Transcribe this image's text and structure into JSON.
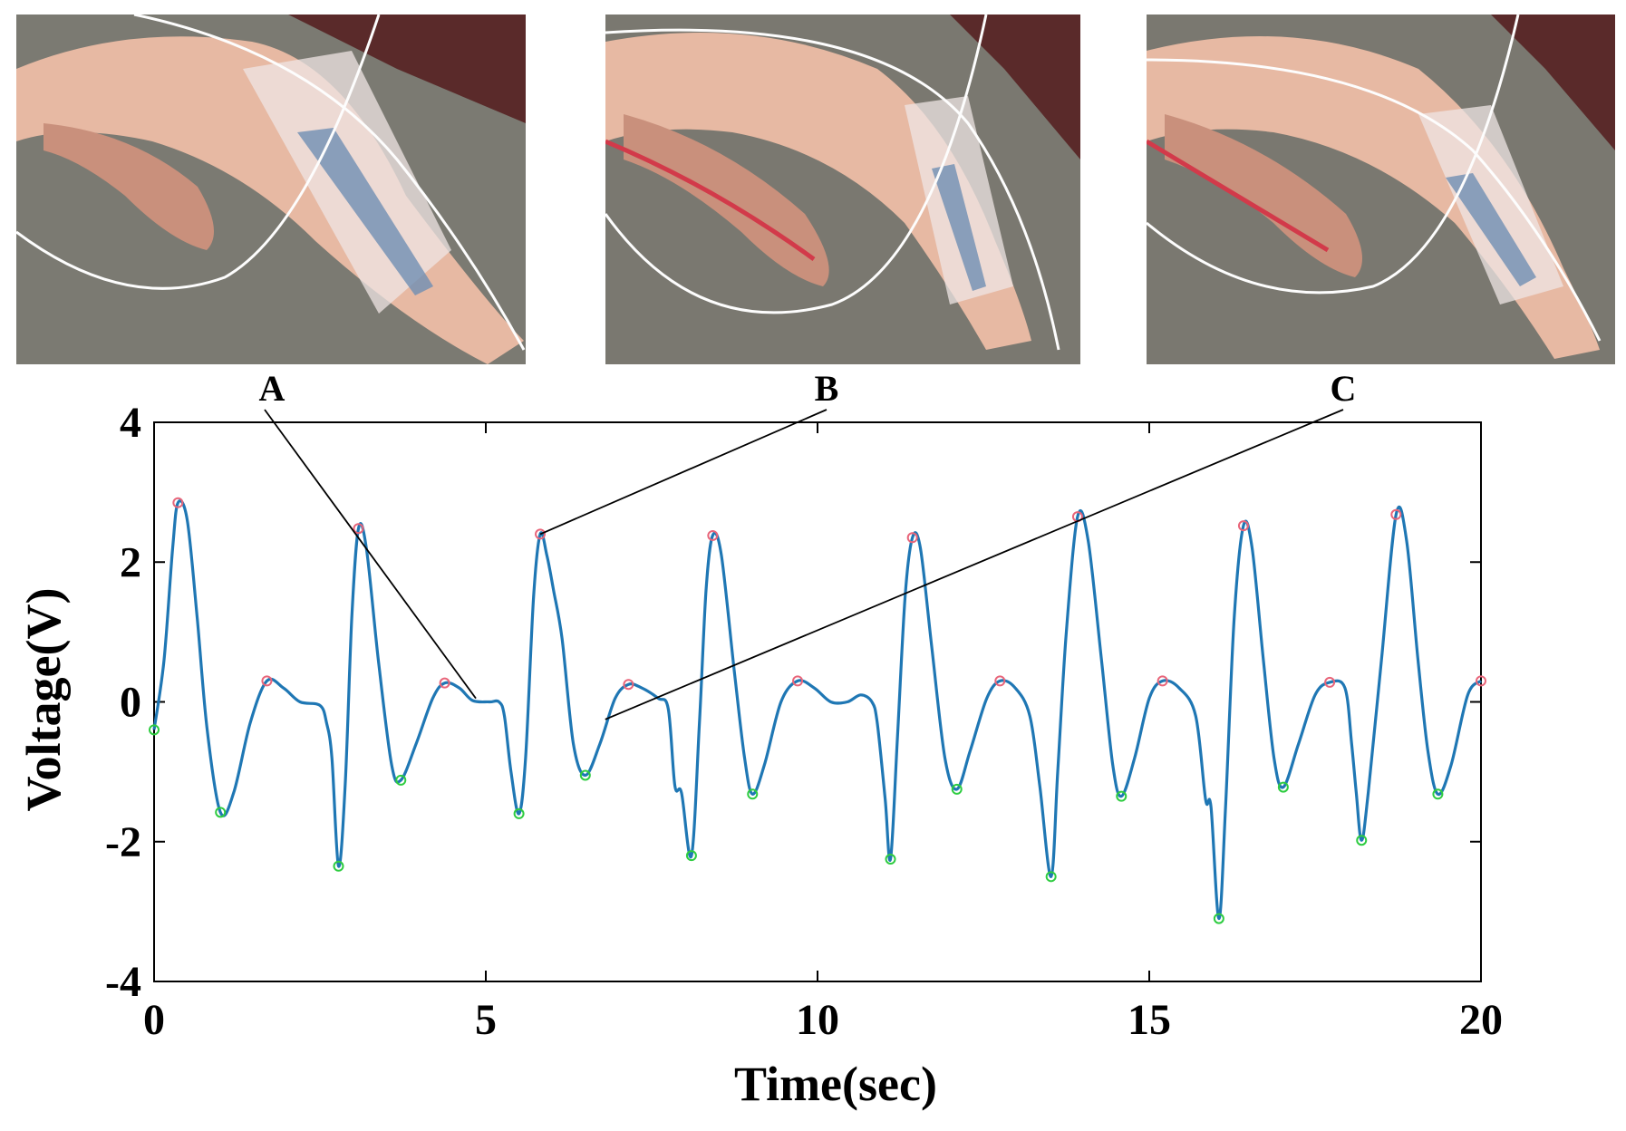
{
  "figure": {
    "photos": [
      {
        "id": "A",
        "description_icon": "finger-straight-photo"
      },
      {
        "id": "B",
        "description_icon": "finger-bent-photo"
      },
      {
        "id": "C",
        "description_icon": "finger-half-bent-photo"
      }
    ]
  },
  "chart_data": {
    "type": "line",
    "xlabel": "Time(sec)",
    "ylabel": "Voltage(V)",
    "xlim": [
      0,
      20
    ],
    "ylim": [
      -4,
      4
    ],
    "xticks": [
      0,
      5,
      10,
      15,
      20
    ],
    "yticks": [
      -4,
      -2,
      0,
      2,
      4
    ],
    "ytick_labels": [
      "-4",
      "-2",
      "0",
      "2",
      "4"
    ],
    "grid": false,
    "line_color": "#1f77b4",
    "peak_marker_color": "#e8657a",
    "trough_marker_color": "#2ecc40",
    "series": [
      {
        "points": [
          [
            0.0,
            -0.4
          ],
          [
            0.15,
            0.6
          ],
          [
            0.28,
            2.2
          ],
          [
            0.36,
            2.85
          ],
          [
            0.5,
            2.6
          ],
          [
            0.65,
            1.2
          ],
          [
            0.8,
            -0.4
          ],
          [
            1.0,
            -1.58
          ],
          [
            1.2,
            -1.3
          ],
          [
            1.45,
            -0.3
          ],
          [
            1.7,
            0.3
          ],
          [
            1.95,
            0.2
          ],
          [
            2.2,
            0.0
          ],
          [
            2.5,
            -0.05
          ],
          [
            2.6,
            -0.3
          ],
          [
            2.68,
            -0.8
          ],
          [
            2.78,
            -2.35
          ],
          [
            2.88,
            -1.2
          ],
          [
            2.98,
            1.2
          ],
          [
            3.08,
            2.48
          ],
          [
            3.2,
            2.2
          ],
          [
            3.38,
            0.6
          ],
          [
            3.58,
            -0.9
          ],
          [
            3.72,
            -1.12
          ],
          [
            3.95,
            -0.6
          ],
          [
            4.2,
            0.05
          ],
          [
            4.38,
            0.27
          ],
          [
            4.6,
            0.2
          ],
          [
            4.8,
            0.02
          ],
          [
            5.05,
            0.0
          ],
          [
            5.2,
            0.0
          ],
          [
            5.28,
            -0.2
          ],
          [
            5.38,
            -1.0
          ],
          [
            5.5,
            -1.6
          ],
          [
            5.6,
            -0.8
          ],
          [
            5.72,
            1.5
          ],
          [
            5.82,
            2.4
          ],
          [
            5.92,
            2.1
          ],
          [
            6.02,
            1.6
          ],
          [
            6.15,
            0.9
          ],
          [
            6.32,
            -0.6
          ],
          [
            6.5,
            -1.05
          ],
          [
            6.72,
            -0.6
          ],
          [
            6.95,
            0.05
          ],
          [
            7.15,
            0.25
          ],
          [
            7.35,
            0.2
          ],
          [
            7.6,
            0.05
          ],
          [
            7.75,
            -0.1
          ],
          [
            7.85,
            -1.2
          ],
          [
            7.95,
            -1.3
          ],
          [
            8.1,
            -2.2
          ],
          [
            8.22,
            -0.3
          ],
          [
            8.32,
            1.6
          ],
          [
            8.42,
            2.38
          ],
          [
            8.55,
            2.1
          ],
          [
            8.75,
            0.4
          ],
          [
            8.9,
            -0.8
          ],
          [
            9.02,
            -1.32
          ],
          [
            9.2,
            -0.9
          ],
          [
            9.45,
            0.0
          ],
          [
            9.7,
            0.3
          ],
          [
            9.95,
            0.2
          ],
          [
            10.2,
            0.0
          ],
          [
            10.45,
            0.0
          ],
          [
            10.65,
            0.1
          ],
          [
            10.82,
            0.0
          ],
          [
            10.9,
            -0.3
          ],
          [
            11.02,
            -1.4
          ],
          [
            11.1,
            -2.25
          ],
          [
            11.2,
            -0.6
          ],
          [
            11.32,
            1.5
          ],
          [
            11.43,
            2.35
          ],
          [
            11.55,
            2.2
          ],
          [
            11.72,
            0.8
          ],
          [
            11.92,
            -0.8
          ],
          [
            12.1,
            -1.25
          ],
          [
            12.3,
            -0.7
          ],
          [
            12.55,
            0.05
          ],
          [
            12.75,
            0.3
          ],
          [
            12.98,
            0.2
          ],
          [
            13.2,
            -0.2
          ],
          [
            13.35,
            -1.2
          ],
          [
            13.52,
            -2.5
          ],
          [
            13.62,
            -1.0
          ],
          [
            13.75,
            1.0
          ],
          [
            13.92,
            2.65
          ],
          [
            14.08,
            2.3
          ],
          [
            14.28,
            0.6
          ],
          [
            14.45,
            -0.9
          ],
          [
            14.58,
            -1.35
          ],
          [
            14.78,
            -0.8
          ],
          [
            15.0,
            0.05
          ],
          [
            15.2,
            0.3
          ],
          [
            15.45,
            0.2
          ],
          [
            15.7,
            -0.2
          ],
          [
            15.85,
            -1.4
          ],
          [
            15.93,
            -1.5
          ],
          [
            16.05,
            -3.1
          ],
          [
            16.15,
            -1.5
          ],
          [
            16.28,
            1.2
          ],
          [
            16.42,
            2.52
          ],
          [
            16.55,
            2.2
          ],
          [
            16.72,
            0.6
          ],
          [
            16.88,
            -0.8
          ],
          [
            17.02,
            -1.22
          ],
          [
            17.25,
            -0.6
          ],
          [
            17.5,
            0.1
          ],
          [
            17.72,
            0.28
          ],
          [
            17.95,
            0.2
          ],
          [
            18.05,
            -0.6
          ],
          [
            18.12,
            -1.3
          ],
          [
            18.2,
            -1.98
          ],
          [
            18.3,
            -1.3
          ],
          [
            18.5,
            0.6
          ],
          [
            18.72,
            2.68
          ],
          [
            18.88,
            2.3
          ],
          [
            19.05,
            0.6
          ],
          [
            19.2,
            -0.7
          ],
          [
            19.35,
            -1.32
          ],
          [
            19.55,
            -0.9
          ],
          [
            19.8,
            0.1
          ],
          [
            20.0,
            0.3
          ]
        ]
      }
    ],
    "peaks": [
      [
        0.36,
        2.85
      ],
      [
        1.7,
        0.3
      ],
      [
        3.08,
        2.48
      ],
      [
        4.38,
        0.27
      ],
      [
        5.82,
        2.4
      ],
      [
        7.15,
        0.25
      ],
      [
        8.42,
        2.38
      ],
      [
        9.7,
        0.3
      ],
      [
        11.43,
        2.35
      ],
      [
        12.75,
        0.3
      ],
      [
        13.92,
        2.65
      ],
      [
        15.2,
        0.3
      ],
      [
        16.42,
        2.52
      ],
      [
        17.72,
        0.28
      ],
      [
        18.72,
        2.68
      ],
      [
        20.0,
        0.3
      ]
    ],
    "troughs": [
      [
        0.0,
        -0.4
      ],
      [
        1.0,
        -1.58
      ],
      [
        2.78,
        -2.35
      ],
      [
        3.72,
        -1.12
      ],
      [
        5.5,
        -1.6
      ],
      [
        6.5,
        -1.05
      ],
      [
        8.1,
        -2.2
      ],
      [
        9.02,
        -1.32
      ],
      [
        11.1,
        -2.25
      ],
      [
        12.1,
        -1.25
      ],
      [
        13.52,
        -2.5
      ],
      [
        14.58,
        -1.35
      ],
      [
        16.05,
        -3.1
      ],
      [
        17.02,
        -1.22
      ],
      [
        18.2,
        -1.98
      ],
      [
        19.35,
        -1.32
      ]
    ],
    "annotations": [
      {
        "label": "A",
        "points_to": [
          4.85,
          0.05
        ]
      },
      {
        "label": "B",
        "points_to": [
          5.82,
          2.4
        ]
      },
      {
        "label": "C",
        "points_to": [
          6.8,
          -0.25
        ]
      }
    ]
  }
}
